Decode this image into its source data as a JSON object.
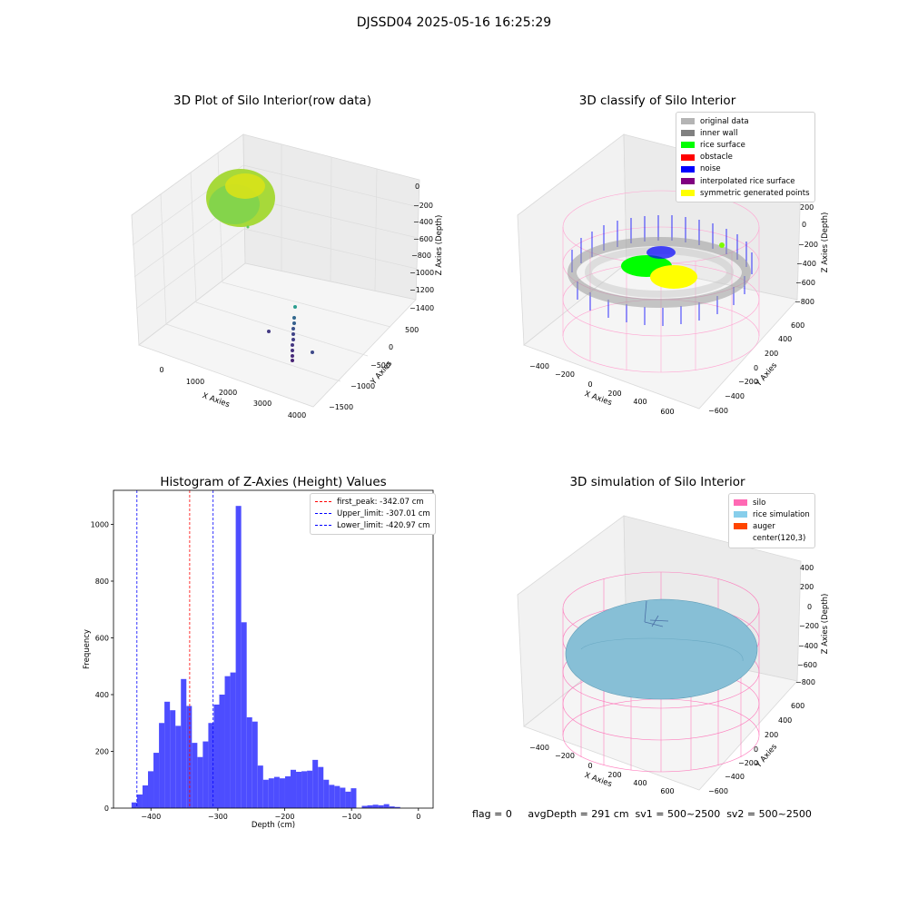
{
  "figure": {
    "suptitle": "DJSSD04 2025-05-16 16:25:29",
    "footer": "flag = 0     avgDepth = 291 cm  sv1 = 500~2500  sv2 = 500~2500"
  },
  "panels": {
    "raw": {
      "title": "3D Plot of Silo Interior(row data)",
      "xlabel": "X Axies",
      "ylabel": "Y Axies",
      "zlabel": "Z Axies (Depth)",
      "xticks": [
        "0",
        "1000",
        "2000",
        "3000",
        "4000"
      ],
      "yticks": [
        "500",
        "0",
        "−500",
        "−1000",
        "−1500"
      ],
      "zticks": [
        "0",
        "−200",
        "−400",
        "−600",
        "−800",
        "−1000",
        "−1200",
        "−1400"
      ]
    },
    "classify": {
      "title": "3D classify of Silo Interior",
      "xlabel": "X Axies",
      "ylabel": "Y Axies",
      "zlabel": "Z Axies (Depth)",
      "xticks": [
        "−400",
        "−200",
        "0",
        "200",
        "400",
        "600"
      ],
      "yticks": [
        "600",
        "400",
        "200",
        "0",
        "−200",
        "−400",
        "−600"
      ],
      "zticks": [
        "200",
        "0",
        "−200",
        "−400",
        "−600",
        "−800"
      ],
      "legend": [
        {
          "label": "original data",
          "color": "#b4b4b4"
        },
        {
          "label": "inner wall",
          "color": "#808080"
        },
        {
          "label": "rice surface",
          "color": "#00ff00"
        },
        {
          "label": "obstacle",
          "color": "#ff0000"
        },
        {
          "label": "noise",
          "color": "#0000ff"
        },
        {
          "label": "interpolated rice surface",
          "color": "#800080"
        },
        {
          "label": "symmetric generated points",
          "color": "#ffff00"
        }
      ]
    },
    "simulation": {
      "title": "3D simulation of Silo Interior",
      "xlabel": "X Axies",
      "ylabel": "Y Axies",
      "zlabel": "Z Axies (Depth)",
      "xticks": [
        "−400",
        "−200",
        "0",
        "200",
        "400",
        "600"
      ],
      "yticks": [
        "600",
        "400",
        "200",
        "0",
        "−200",
        "−400",
        "−600"
      ],
      "zticks": [
        "400",
        "200",
        "0",
        "−200",
        "−400",
        "−600",
        "−800"
      ],
      "legend": [
        {
          "label": "silo",
          "color": "#ff69b4"
        },
        {
          "label": "rice simulation",
          "color": "#87ceeb"
        },
        {
          "label": "auger",
          "color": "#ff4500"
        },
        {
          "label": "center(120,3)",
          "color": ""
        }
      ]
    }
  },
  "chart_data": {
    "type": "bar",
    "title": "Histogram of Z-Axies (Height) Values",
    "xlabel": "Depth (cm)",
    "ylabel": "Frequency",
    "xlim": [
      -456,
      22
    ],
    "ylim": [
      0,
      1120
    ],
    "xticks": [
      -400,
      -300,
      -200,
      -100,
      0
    ],
    "yticks": [
      0,
      200,
      400,
      600,
      800,
      1000
    ],
    "bar_color": "#4d4dff",
    "bin_start": -429,
    "bin_width": 8.2,
    "values": [
      20,
      48,
      80,
      130,
      195,
      300,
      375,
      345,
      290,
      455,
      360,
      230,
      180,
      235,
      300,
      365,
      400,
      465,
      478,
      1065,
      655,
      320,
      305,
      150,
      100,
      105,
      110,
      105,
      112,
      135,
      128,
      130,
      132,
      170,
      145,
      100,
      82,
      78,
      72,
      58,
      70,
      0,
      8,
      10,
      12,
      10,
      14,
      6,
      4
    ],
    "vlines": [
      {
        "label": "first_peak: -342.07 cm",
        "x": -342.07,
        "color": "#ff0000"
      },
      {
        "label": "Upper_limit: -307.01 cm",
        "x": -307.01,
        "color": "#0000ff"
      },
      {
        "label": "Lower_limit: -420.97 cm",
        "x": -420.97,
        "color": "#0000ff"
      }
    ]
  }
}
